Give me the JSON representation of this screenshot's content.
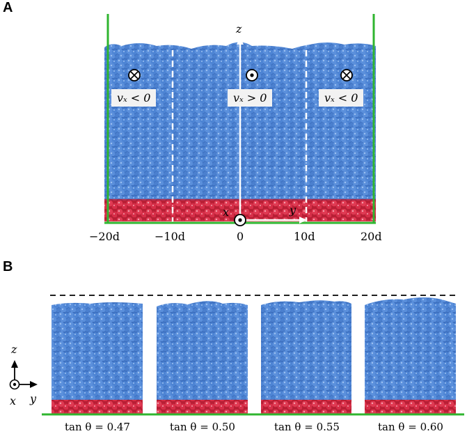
{
  "panelA": {
    "letter": "A",
    "axis_z": "z",
    "axis_x": "x",
    "axis_y": "y",
    "regions": [
      {
        "label": "vₓ < 0",
        "symbol": "into-page"
      },
      {
        "label": "vₓ > 0",
        "symbol": "out-of-page"
      },
      {
        "label": "vₓ < 0",
        "symbol": "into-page"
      }
    ],
    "ticks": [
      "−20d",
      "−10d",
      "0",
      "10d",
      "20d"
    ]
  },
  "panelB": {
    "letter": "B",
    "axis_z": "z",
    "axis_x": "x",
    "axis_y": "y",
    "columns": [
      {
        "label": "tan θ = 0.47"
      },
      {
        "label": "tan θ = 0.50"
      },
      {
        "label": "tan θ = 0.55"
      },
      {
        "label": "tan θ = 0.60"
      }
    ]
  },
  "colors": {
    "blue_particles": "#4a7fcf",
    "red_particles": "#d8304a",
    "wall_green": "#2fb52f"
  }
}
